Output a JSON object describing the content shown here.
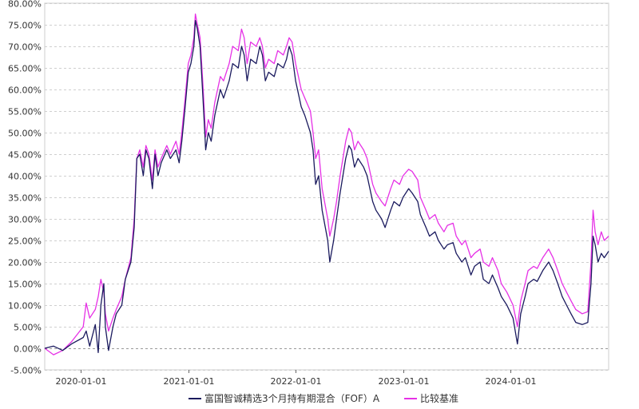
{
  "chart_data": {
    "type": "line",
    "title": "",
    "xlabel": "",
    "ylabel": "",
    "x_ticks": [
      "2020-01-01",
      "2021-01-01",
      "2022-01-01",
      "2023-01-01",
      "2024-01-01"
    ],
    "y_ticks": [
      "-5.00%",
      "0.00%",
      "5.00%",
      "10.00%",
      "15.00%",
      "20.00%",
      "25.00%",
      "30.00%",
      "35.00%",
      "40.00%",
      "45.00%",
      "50.00%",
      "55.00%",
      "60.00%",
      "65.00%",
      "70.00%",
      "75.00%",
      "80.00%"
    ],
    "ylim": [
      -5,
      80
    ],
    "xlim": [
      "2019-09-01",
      "2024-11-30"
    ],
    "grid": "horizontal dashed",
    "legend_position": "bottom",
    "series": [
      {
        "name": "富国智诚精选3个月持有期混合（FOF）A",
        "color": "#1a1a5e",
        "points": [
          [
            "2019-09-01",
            0.0
          ],
          [
            "2019-10-01",
            0.5
          ],
          [
            "2019-11-01",
            -0.5
          ],
          [
            "2019-12-01",
            1.0
          ],
          [
            "2020-01-10",
            2.5
          ],
          [
            "2020-01-20",
            4.0
          ],
          [
            "2020-02-01",
            0.5
          ],
          [
            "2020-02-20",
            5.5
          ],
          [
            "2020-03-01",
            -1.0
          ],
          [
            "2020-03-10",
            10.0
          ],
          [
            "2020-03-20",
            15.0
          ],
          [
            "2020-03-25",
            5.0
          ],
          [
            "2020-04-05",
            -0.5
          ],
          [
            "2020-04-20",
            5.0
          ],
          [
            "2020-05-01",
            8.0
          ],
          [
            "2020-05-20",
            10.0
          ],
          [
            "2020-06-01",
            16.0
          ],
          [
            "2020-06-20",
            20.0
          ],
          [
            "2020-07-01",
            28.0
          ],
          [
            "2020-07-10",
            44.0
          ],
          [
            "2020-07-20",
            45.0
          ],
          [
            "2020-08-01",
            40.0
          ],
          [
            "2020-08-10",
            46.0
          ],
          [
            "2020-08-20",
            44.0
          ],
          [
            "2020-09-01",
            37.0
          ],
          [
            "2020-09-10",
            45.0
          ],
          [
            "2020-09-20",
            40.0
          ],
          [
            "2020-10-01",
            43.0
          ],
          [
            "2020-10-20",
            46.0
          ],
          [
            "2020-11-01",
            44.0
          ],
          [
            "2020-11-20",
            46.0
          ],
          [
            "2020-12-01",
            43.0
          ],
          [
            "2020-12-10",
            48.0
          ],
          [
            "2020-12-20",
            55.0
          ],
          [
            "2021-01-01",
            64.0
          ],
          [
            "2021-01-10",
            66.0
          ],
          [
            "2021-01-20",
            70.0
          ],
          [
            "2021-01-25",
            76.0
          ],
          [
            "2021-02-01",
            74.0
          ],
          [
            "2021-02-10",
            70.0
          ],
          [
            "2021-02-20",
            58.0
          ],
          [
            "2021-03-01",
            46.0
          ],
          [
            "2021-03-10",
            50.0
          ],
          [
            "2021-03-20",
            48.0
          ],
          [
            "2021-04-01",
            54.0
          ],
          [
            "2021-04-20",
            60.0
          ],
          [
            "2021-05-01",
            58.0
          ],
          [
            "2021-05-20",
            62.0
          ],
          [
            "2021-06-01",
            66.0
          ],
          [
            "2021-06-20",
            65.0
          ],
          [
            "2021-07-01",
            70.0
          ],
          [
            "2021-07-10",
            68.0
          ],
          [
            "2021-07-20",
            62.0
          ],
          [
            "2021-08-01",
            67.0
          ],
          [
            "2021-08-20",
            66.0
          ],
          [
            "2021-09-01",
            70.0
          ],
          [
            "2021-09-10",
            68.0
          ],
          [
            "2021-09-20",
            62.0
          ],
          [
            "2021-10-01",
            64.0
          ],
          [
            "2021-10-20",
            63.0
          ],
          [
            "2021-11-01",
            66.0
          ],
          [
            "2021-11-20",
            65.0
          ],
          [
            "2021-12-01",
            67.0
          ],
          [
            "2021-12-10",
            70.0
          ],
          [
            "2021-12-20",
            68.0
          ],
          [
            "2022-01-01",
            62.0
          ],
          [
            "2022-01-20",
            56.0
          ],
          [
            "2022-02-01",
            54.0
          ],
          [
            "2022-02-20",
            50.0
          ],
          [
            "2022-03-01",
            46.0
          ],
          [
            "2022-03-10",
            38.0
          ],
          [
            "2022-03-20",
            40.0
          ],
          [
            "2022-04-01",
            32.0
          ],
          [
            "2022-04-20",
            25.0
          ],
          [
            "2022-04-27",
            20.0
          ],
          [
            "2022-05-10",
            25.0
          ],
          [
            "2022-05-20",
            30.0
          ],
          [
            "2022-06-01",
            36.0
          ],
          [
            "2022-06-20",
            44.0
          ],
          [
            "2022-07-01",
            47.0
          ],
          [
            "2022-07-10",
            46.0
          ],
          [
            "2022-07-20",
            42.0
          ],
          [
            "2022-08-01",
            44.0
          ],
          [
            "2022-08-20",
            42.0
          ],
          [
            "2022-09-01",
            40.0
          ],
          [
            "2022-09-20",
            34.0
          ],
          [
            "2022-10-01",
            32.0
          ],
          [
            "2022-10-20",
            30.0
          ],
          [
            "2022-11-01",
            28.0
          ],
          [
            "2022-11-20",
            32.0
          ],
          [
            "2022-12-01",
            34.0
          ],
          [
            "2022-12-20",
            33.0
          ],
          [
            "2023-01-01",
            35.0
          ],
          [
            "2023-01-20",
            37.0
          ],
          [
            "2023-02-01",
            36.0
          ],
          [
            "2023-02-20",
            34.0
          ],
          [
            "2023-03-01",
            31.0
          ],
          [
            "2023-03-20",
            28.0
          ],
          [
            "2023-04-01",
            26.0
          ],
          [
            "2023-04-20",
            27.0
          ],
          [
            "2023-05-01",
            25.0
          ],
          [
            "2023-05-20",
            23.0
          ],
          [
            "2023-06-01",
            24.0
          ],
          [
            "2023-06-20",
            24.5
          ],
          [
            "2023-07-01",
            22.0
          ],
          [
            "2023-07-20",
            20.0
          ],
          [
            "2023-08-01",
            21.0
          ],
          [
            "2023-08-20",
            17.0
          ],
          [
            "2023-09-01",
            19.0
          ],
          [
            "2023-09-20",
            20.0
          ],
          [
            "2023-10-01",
            16.0
          ],
          [
            "2023-10-20",
            15.0
          ],
          [
            "2023-11-01",
            17.0
          ],
          [
            "2023-11-20",
            14.0
          ],
          [
            "2023-12-01",
            12.0
          ],
          [
            "2023-12-20",
            10.0
          ],
          [
            "2024-01-10",
            7.0
          ],
          [
            "2024-01-25",
            1.0
          ],
          [
            "2024-02-05",
            8.0
          ],
          [
            "2024-02-20",
            12.0
          ],
          [
            "2024-03-01",
            15.0
          ],
          [
            "2024-03-20",
            16.0
          ],
          [
            "2024-04-01",
            15.5
          ],
          [
            "2024-04-20",
            18.0
          ],
          [
            "2024-05-10",
            20.0
          ],
          [
            "2024-05-25",
            18.0
          ],
          [
            "2024-06-10",
            15.0
          ],
          [
            "2024-06-25",
            12.0
          ],
          [
            "2024-07-10",
            10.0
          ],
          [
            "2024-07-25",
            8.0
          ],
          [
            "2024-08-10",
            6.0
          ],
          [
            "2024-09-01",
            5.5
          ],
          [
            "2024-09-20",
            6.0
          ],
          [
            "2024-10-01",
            15.0
          ],
          [
            "2024-10-08",
            26.0
          ],
          [
            "2024-10-15",
            24.0
          ],
          [
            "2024-10-25",
            20.0
          ],
          [
            "2024-11-05",
            22.0
          ],
          [
            "2024-11-15",
            21.0
          ],
          [
            "2024-11-30",
            22.5
          ]
        ]
      },
      {
        "name": "比较基准",
        "color": "#e631e6",
        "points": [
          [
            "2019-09-01",
            0.0
          ],
          [
            "2019-10-01",
            -1.5
          ],
          [
            "2019-11-01",
            -0.5
          ],
          [
            "2019-12-01",
            1.5
          ],
          [
            "2020-01-10",
            5.0
          ],
          [
            "2020-01-20",
            10.5
          ],
          [
            "2020-02-01",
            7.0
          ],
          [
            "2020-02-20",
            9.0
          ],
          [
            "2020-03-01",
            12.0
          ],
          [
            "2020-03-10",
            16.0
          ],
          [
            "2020-03-20",
            13.0
          ],
          [
            "2020-03-25",
            8.0
          ],
          [
            "2020-04-05",
            4.0
          ],
          [
            "2020-04-20",
            7.0
          ],
          [
            "2020-05-01",
            9.0
          ],
          [
            "2020-05-20",
            12.0
          ],
          [
            "2020-06-01",
            16.0
          ],
          [
            "2020-06-20",
            21.0
          ],
          [
            "2020-07-01",
            30.0
          ],
          [
            "2020-07-10",
            44.0
          ],
          [
            "2020-07-20",
            46.0
          ],
          [
            "2020-08-01",
            42.0
          ],
          [
            "2020-08-10",
            47.0
          ],
          [
            "2020-08-20",
            45.0
          ],
          [
            "2020-09-01",
            39.0
          ],
          [
            "2020-09-10",
            46.0
          ],
          [
            "2020-09-20",
            42.0
          ],
          [
            "2020-10-01",
            44.0
          ],
          [
            "2020-10-20",
            47.0
          ],
          [
            "2020-11-01",
            45.0
          ],
          [
            "2020-11-20",
            48.0
          ],
          [
            "2020-12-01",
            45.0
          ],
          [
            "2020-12-10",
            50.0
          ],
          [
            "2020-12-20",
            57.0
          ],
          [
            "2021-01-01",
            66.0
          ],
          [
            "2021-01-10",
            68.0
          ],
          [
            "2021-01-20",
            72.0
          ],
          [
            "2021-01-25",
            77.5
          ],
          [
            "2021-02-01",
            75.0
          ],
          [
            "2021-02-10",
            72.0
          ],
          [
            "2021-02-20",
            61.0
          ],
          [
            "2021-03-01",
            49.0
          ],
          [
            "2021-03-10",
            53.0
          ],
          [
            "2021-03-20",
            51.0
          ],
          [
            "2021-04-01",
            57.0
          ],
          [
            "2021-04-20",
            63.0
          ],
          [
            "2021-05-01",
            62.0
          ],
          [
            "2021-05-20",
            66.0
          ],
          [
            "2021-06-01",
            70.0
          ],
          [
            "2021-06-20",
            69.0
          ],
          [
            "2021-07-01",
            74.0
          ],
          [
            "2021-07-10",
            72.0
          ],
          [
            "2021-07-20",
            66.0
          ],
          [
            "2021-08-01",
            71.0
          ],
          [
            "2021-08-20",
            70.0
          ],
          [
            "2021-09-01",
            72.0
          ],
          [
            "2021-09-10",
            70.0
          ],
          [
            "2021-09-20",
            65.0
          ],
          [
            "2021-10-01",
            67.0
          ],
          [
            "2021-10-20",
            66.0
          ],
          [
            "2021-11-01",
            69.0
          ],
          [
            "2021-11-20",
            68.0
          ],
          [
            "2021-12-01",
            70.0
          ],
          [
            "2021-12-10",
            72.0
          ],
          [
            "2021-12-20",
            71.0
          ],
          [
            "2022-01-01",
            66.0
          ],
          [
            "2022-01-20",
            60.0
          ],
          [
            "2022-02-01",
            58.0
          ],
          [
            "2022-02-20",
            55.0
          ],
          [
            "2022-03-01",
            50.0
          ],
          [
            "2022-03-10",
            44.0
          ],
          [
            "2022-03-20",
            46.0
          ],
          [
            "2022-04-01",
            37.0
          ],
          [
            "2022-04-20",
            30.0
          ],
          [
            "2022-04-27",
            26.0
          ],
          [
            "2022-05-10",
            30.0
          ],
          [
            "2022-05-20",
            34.0
          ],
          [
            "2022-06-01",
            40.0
          ],
          [
            "2022-06-20",
            48.0
          ],
          [
            "2022-07-01",
            51.0
          ],
          [
            "2022-07-10",
            50.0
          ],
          [
            "2022-07-20",
            46.0
          ],
          [
            "2022-08-01",
            48.0
          ],
          [
            "2022-08-20",
            46.0
          ],
          [
            "2022-09-01",
            44.0
          ],
          [
            "2022-09-20",
            38.0
          ],
          [
            "2022-10-01",
            36.0
          ],
          [
            "2022-10-20",
            34.0
          ],
          [
            "2022-11-01",
            33.0
          ],
          [
            "2022-11-20",
            37.0
          ],
          [
            "2022-12-01",
            39.0
          ],
          [
            "2022-12-20",
            38.0
          ],
          [
            "2023-01-01",
            40.0
          ],
          [
            "2023-01-20",
            41.5
          ],
          [
            "2023-02-01",
            41.0
          ],
          [
            "2023-02-20",
            39.0
          ],
          [
            "2023-03-01",
            35.0
          ],
          [
            "2023-03-20",
            32.0
          ],
          [
            "2023-04-01",
            30.0
          ],
          [
            "2023-04-20",
            31.0
          ],
          [
            "2023-05-01",
            29.0
          ],
          [
            "2023-05-20",
            27.0
          ],
          [
            "2023-06-01",
            28.5
          ],
          [
            "2023-06-20",
            29.0
          ],
          [
            "2023-07-01",
            26.0
          ],
          [
            "2023-07-20",
            24.0
          ],
          [
            "2023-08-01",
            25.0
          ],
          [
            "2023-08-20",
            21.0
          ],
          [
            "2023-09-01",
            22.0
          ],
          [
            "2023-09-20",
            23.0
          ],
          [
            "2023-10-01",
            20.0
          ],
          [
            "2023-10-20",
            19.0
          ],
          [
            "2023-11-01",
            21.0
          ],
          [
            "2023-11-20",
            18.0
          ],
          [
            "2023-12-01",
            15.0
          ],
          [
            "2023-12-20",
            13.0
          ],
          [
            "2024-01-10",
            10.0
          ],
          [
            "2024-01-25",
            5.0
          ],
          [
            "2024-02-05",
            11.0
          ],
          [
            "2024-02-20",
            15.0
          ],
          [
            "2024-03-01",
            18.0
          ],
          [
            "2024-03-20",
            19.0
          ],
          [
            "2024-04-01",
            18.5
          ],
          [
            "2024-04-20",
            21.0
          ],
          [
            "2024-05-10",
            23.0
          ],
          [
            "2024-05-25",
            21.0
          ],
          [
            "2024-06-10",
            18.0
          ],
          [
            "2024-06-25",
            15.0
          ],
          [
            "2024-07-10",
            13.0
          ],
          [
            "2024-07-25",
            11.0
          ],
          [
            "2024-08-10",
            9.0
          ],
          [
            "2024-09-01",
            8.0
          ],
          [
            "2024-09-20",
            8.5
          ],
          [
            "2024-10-01",
            20.0
          ],
          [
            "2024-10-08",
            32.0
          ],
          [
            "2024-10-15",
            27.0
          ],
          [
            "2024-10-25",
            24.0
          ],
          [
            "2024-11-05",
            27.0
          ],
          [
            "2024-11-15",
            25.0
          ],
          [
            "2024-11-30",
            26.0
          ]
        ]
      }
    ]
  }
}
